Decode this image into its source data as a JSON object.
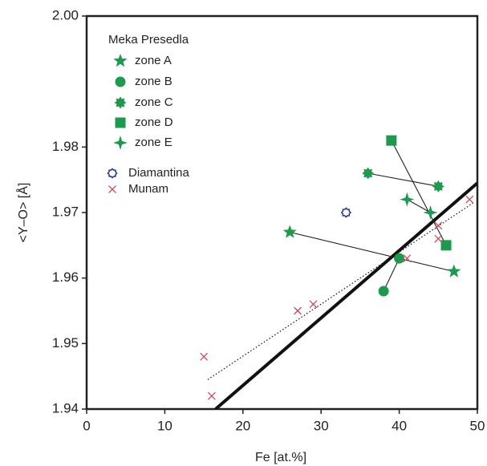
{
  "chart_data": {
    "type": "scatter",
    "x_label": "Fe [at.%]",
    "y_label": "<Y–O> [Å]",
    "xlim": [
      0,
      50
    ],
    "ylim": [
      1.94,
      2.0
    ],
    "xticks": [
      0,
      10,
      20,
      30,
      40,
      50
    ],
    "yticks": [
      1.94,
      1.95,
      1.96,
      1.97,
      1.98,
      {
        "value": 2.0,
        "label": "2.00"
      }
    ],
    "legend_group_title": "Meka Presedla",
    "series": [
      {
        "name": "zone A",
        "color": "#1d9a4e",
        "marker": "star5",
        "connect": true,
        "x": [
          26,
          47
        ],
        "values": [
          1.967,
          1.961
        ]
      },
      {
        "name": "zone B",
        "color": "#1d9a4e",
        "marker": "circle",
        "connect": true,
        "x": [
          38,
          40
        ],
        "values": [
          1.958,
          1.963
        ]
      },
      {
        "name": "zone C",
        "color": "#1d9a4e",
        "marker": "burst",
        "connect": true,
        "x": [
          36,
          45
        ],
        "values": [
          1.976,
          1.974
        ]
      },
      {
        "name": "zone D",
        "color": "#1d9a4e",
        "marker": "square",
        "connect": true,
        "x": [
          39,
          46
        ],
        "values": [
          1.981,
          1.965
        ]
      },
      {
        "name": "zone E",
        "color": "#1d9a4e",
        "marker": "star4",
        "connect": true,
        "x": [
          41,
          44
        ],
        "values": [
          1.972,
          1.97
        ]
      },
      {
        "name": "Diamantina",
        "color": "#2a3a9a",
        "marker": "open-circle",
        "connect": false,
        "x": [
          33.2
        ],
        "values": [
          1.97
        ]
      },
      {
        "name": "Munam",
        "color": "#d0485a",
        "marker": "cross",
        "connect": false,
        "x": [
          15,
          16,
          27,
          29,
          41,
          45,
          45,
          49
        ],
        "values": [
          1.948,
          1.942,
          1.955,
          1.956,
          1.963,
          1.968,
          1.966,
          1.972
        ]
      }
    ],
    "fit_lines": [
      {
        "style": "solid",
        "x": [
          16.5,
          50
        ],
        "y": [
          1.94,
          1.9745
        ]
      },
      {
        "style": "dotted",
        "x": [
          15.5,
          49.5
        ],
        "y": [
          1.9445,
          1.9715
        ]
      }
    ]
  }
}
